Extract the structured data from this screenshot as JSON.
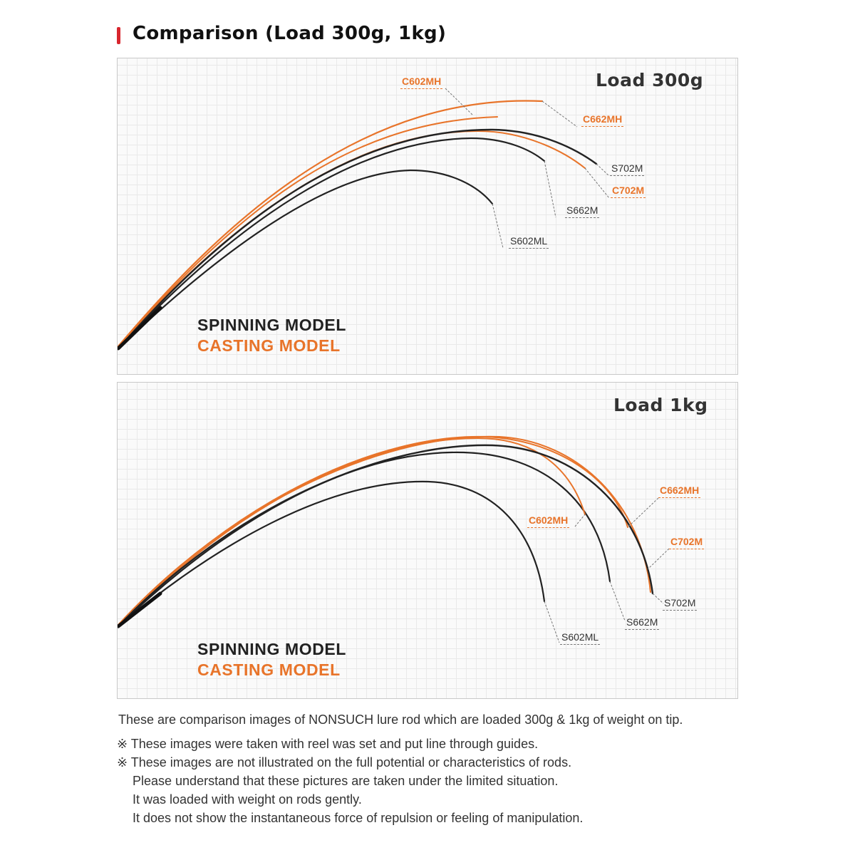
{
  "title": "Comparison (Load 300g, 1kg)",
  "colors": {
    "accent_bar": "#d8262e",
    "casting": "#e8742a",
    "spinning": "#222222"
  },
  "panels": [
    {
      "load_label": "Load 300g",
      "labels": {
        "C602MH": "C602MH",
        "C662MH": "C662MH",
        "S702M": "S702M",
        "C702M": "C702M",
        "S662M": "S662M",
        "S602ML": "S602ML"
      },
      "legend": {
        "spinning": "SPINNING MODEL",
        "casting": "CASTING MODEL"
      }
    },
    {
      "load_label": "Load 1kg",
      "labels": {
        "C662MH": "C662MH",
        "C602MH": "C602MH",
        "C702M": "C702M",
        "S702M": "S702M",
        "S662M": "S662M",
        "S602ML": "S602ML"
      },
      "legend": {
        "spinning": "SPINNING MODEL",
        "casting": "CASTING MODEL"
      }
    }
  ],
  "footer": {
    "line1": "These are comparison images of NONSUCH lure rod which are loaded 300g & 1kg of weight on tip.",
    "note1": "※ These images were taken with reel was set and put line through guides.",
    "note2": "※ These images are not illustrated on the full potential or characteristics of rods.",
    "note2_cont1": "Please understand that these pictures are taken under the limited situation.",
    "note2_cont2": "It was loaded with weight on rods gently.",
    "note2_cont3": "It does not show the instantaneous force of repulsion or feeling of manipulation."
  }
}
